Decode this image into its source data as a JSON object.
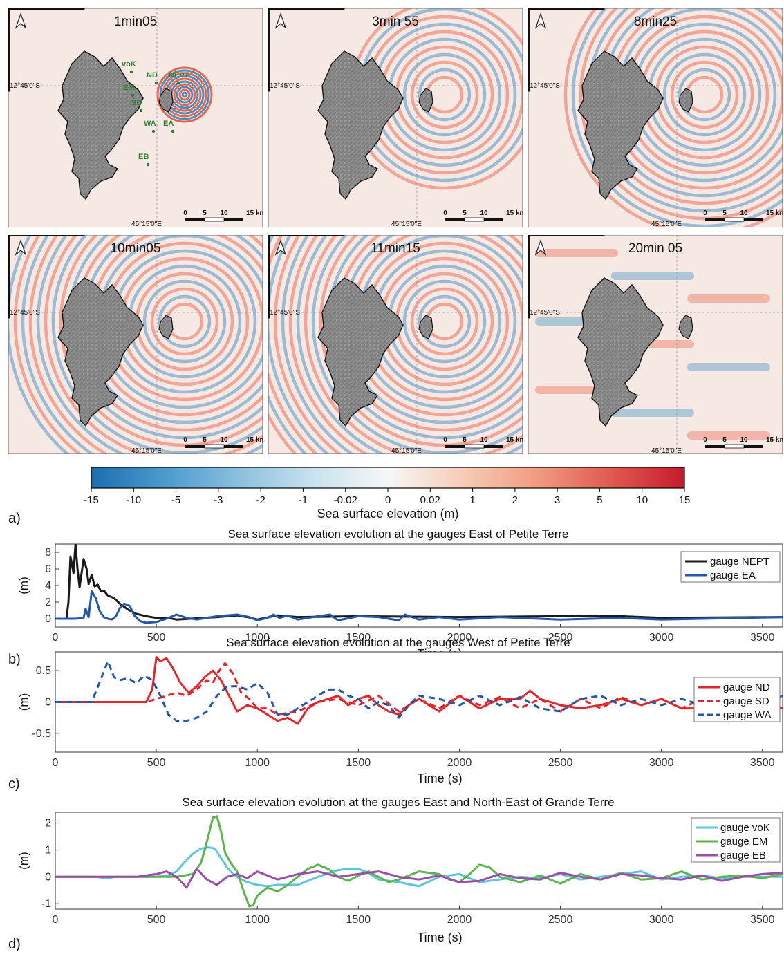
{
  "maps": {
    "panels": [
      {
        "time_label": "1min05"
      },
      {
        "time_label": "3min 55"
      },
      {
        "time_label": "8min25"
      },
      {
        "time_label": "10min05"
      },
      {
        "time_label": "11min15"
      },
      {
        "time_label": "20min 05"
      }
    ],
    "lat_label": "12°45'0\"S",
    "lon_label": "45°15'0\"E",
    "scale_labels": [
      "0",
      "5",
      "10",
      "15 km"
    ],
    "gauge_labels": [
      "voK",
      "ND",
      "NEPT",
      "EM",
      "SD",
      "WA",
      "EA",
      "EB"
    ],
    "colors": {
      "ocean": "#f6e8e2",
      "land": "#8a8a8a",
      "gauge": "#2e7d32",
      "positive": "#e8553f",
      "negative": "#2f86c0"
    }
  },
  "colorbar": {
    "ticks": [
      "-15",
      "-10",
      "-5",
      "-3",
      "-2",
      "-1",
      "-0.02",
      "0",
      "0.02",
      "1",
      "2",
      "3",
      "5",
      "10",
      "15"
    ],
    "label": "Sea surface elevation (m)",
    "colors": [
      "#1a6fb0",
      "#4b9bcd",
      "#8cc0de",
      "#c9e2ef",
      "#f7f7f7",
      "#f6cdb7",
      "#f29c82",
      "#e05a4f",
      "#c51b2f"
    ]
  },
  "panel_labels": [
    "a)",
    "b)",
    "c)",
    "d)"
  ],
  "chart_data": [
    {
      "type": "line",
      "title": "Sea surface elevation evolution at the gauges East of Petite Terre",
      "xlabel": "Time (s)",
      "ylabel": "(m)",
      "xlim": [
        0,
        3600
      ],
      "ylim": [
        -1,
        9
      ],
      "xticks": [
        0,
        500,
        1000,
        1500,
        2000,
        2500,
        3000,
        3500
      ],
      "yticks": [
        0,
        2,
        4,
        6,
        8
      ],
      "legend": "top-right",
      "grid": false,
      "series": [
        {
          "name": "gauge NEPT",
          "color": "#1a1a1a",
          "dash": "solid",
          "x": [
            0,
            55,
            65,
            75,
            90,
            100,
            110,
            120,
            140,
            155,
            165,
            180,
            195,
            210,
            225,
            240,
            260,
            290,
            320,
            360,
            400,
            450,
            500,
            560,
            600,
            700,
            800,
            900,
            950,
            1000,
            1100,
            1200,
            1500,
            2000,
            2500,
            2800,
            3000,
            3600
          ],
          "y": [
            0,
            0,
            2,
            7.5,
            5.5,
            9,
            6,
            3.8,
            7.2,
            6,
            4.2,
            5.3,
            3.9,
            4.1,
            3.3,
            3.4,
            2.8,
            2.5,
            1.8,
            1.1,
            0.6,
            0.3,
            0.1,
            0.1,
            -0.1,
            0.05,
            0.2,
            0.4,
            0.2,
            -0.1,
            0.4,
            0.2,
            0.3,
            0.2,
            0.3,
            0.3,
            0.1,
            0.2
          ]
        },
        {
          "name": "gauge EA",
          "color": "#2457a6",
          "dash": "solid",
          "x": [
            0,
            100,
            140,
            150,
            165,
            180,
            200,
            220,
            240,
            260,
            280,
            300,
            320,
            340,
            355,
            370,
            390,
            420,
            450,
            500,
            550,
            600,
            650,
            700,
            800,
            900,
            960,
            1000,
            1050,
            1080,
            1110,
            1150,
            1200,
            1300,
            1360,
            1400,
            1500,
            1600,
            1700,
            1730,
            1800,
            1900,
            2000,
            2200,
            2500,
            2800,
            3000,
            3200,
            3600
          ],
          "y": [
            0,
            0,
            0.1,
            1.2,
            0.2,
            3.3,
            2.5,
            0.9,
            0.2,
            0,
            -0.1,
            0.3,
            1.3,
            1.8,
            1.7,
            1.5,
            0.4,
            -0.3,
            -0.5,
            -0.4,
            0,
            0.5,
            0.1,
            -0.1,
            0.3,
            0.5,
            0.2,
            -0.2,
            0.1,
            0.5,
            0.1,
            0.4,
            -0.1,
            0.3,
            0.5,
            -0.2,
            0.3,
            0.2,
            -0.2,
            0.5,
            -0.1,
            0.2,
            -0.1,
            0.2,
            -0.1,
            0.1,
            -0.1,
            0,
            0.2
          ]
        }
      ]
    },
    {
      "type": "line",
      "title": "Sea surface elevation evolution at the gauges West of Petite Terre",
      "xlabel": "Time (s)",
      "ylabel": "(m)",
      "xlim": [
        0,
        3600
      ],
      "ylim": [
        -0.8,
        0.8
      ],
      "xticks": [
        0,
        500,
        1000,
        1500,
        2000,
        2500,
        3000,
        3500
      ],
      "yticks": [
        -0.5,
        0,
        0.5
      ],
      "yticklabels": [
        "-0.5",
        "0",
        "0.5"
      ],
      "legend": "top-right",
      "grid": false,
      "series": [
        {
          "name": "gauge ND",
          "color": "#e4262b",
          "dash": "solid",
          "x": [
            0,
            450,
            480,
            500,
            520,
            550,
            580,
            620,
            660,
            700,
            740,
            780,
            820,
            860,
            900,
            950,
            1000,
            1050,
            1100,
            1150,
            1200,
            1250,
            1300,
            1350,
            1400,
            1450,
            1500,
            1550,
            1600,
            1650,
            1700,
            1750,
            1800,
            1900,
            2000,
            2100,
            2200,
            2300,
            2350,
            2400,
            2500,
            2600,
            2700,
            2800,
            2900,
            3000,
            3100,
            3200,
            3300,
            3400,
            3500,
            3600
          ],
          "y": [
            0,
            0,
            0.2,
            0.72,
            0.65,
            0.7,
            0.55,
            0.3,
            0.15,
            0.25,
            0.4,
            0.5,
            0.35,
            0.1,
            -0.15,
            -0.05,
            -0.1,
            -0.2,
            -0.3,
            -0.25,
            -0.35,
            -0.1,
            0,
            0.05,
            0.1,
            -0.05,
            0.05,
            0.1,
            -0.05,
            -0.15,
            -0.2,
            -0.05,
            0.05,
            -0.15,
            0.1,
            -0.1,
            0.05,
            0.05,
            0.18,
            0.05,
            -0.05,
            -0.1,
            -0.05,
            0.05,
            -0.05,
            0.05,
            -0.1,
            -0.1,
            0.05,
            -0.1,
            -0.05,
            -0.1
          ]
        },
        {
          "name": "gauge SD",
          "color": "#e4262b",
          "dash": "dash",
          "x": [
            0,
            450,
            500,
            550,
            600,
            650,
            700,
            750,
            780,
            800,
            840,
            880,
            920,
            960,
            1000,
            1050,
            1100,
            1200,
            1300,
            1400,
            1500,
            1600,
            1700,
            1800,
            1900,
            2000,
            2100,
            2200,
            2300,
            2400,
            2500,
            2600,
            2700,
            2800,
            2900,
            3000,
            3100,
            3200,
            3300,
            3400,
            3500,
            3600
          ],
          "y": [
            0,
            0,
            0.05,
            0.1,
            0.15,
            0.1,
            0.2,
            0.35,
            0.3,
            0.45,
            0.62,
            0.45,
            0.15,
            0.05,
            -0.1,
            -0.1,
            -0.2,
            -0.15,
            0,
            0.05,
            -0.05,
            0.1,
            -0.15,
            0.05,
            -0.1,
            0.1,
            -0.05,
            0.08,
            -0.1,
            0.05,
            -0.15,
            0.05,
            -0.1,
            0.08,
            -0.05,
            0.05,
            -0.1,
            0.05,
            -0.05,
            0.05,
            0,
            0.1
          ]
        },
        {
          "name": "gauge WA",
          "color": "#2457a6",
          "dash": "dash",
          "x": [
            0,
            180,
            230,
            260,
            290,
            320,
            360,
            400,
            440,
            480,
            520,
            560,
            600,
            650,
            700,
            750,
            800,
            850,
            900,
            950,
            1000,
            1050,
            1100,
            1150,
            1200,
            1250,
            1300,
            1350,
            1400,
            1450,
            1500,
            1550,
            1600,
            1650,
            1700,
            1750,
            1800,
            1900,
            2000,
            2100,
            2200,
            2300,
            2400,
            2500,
            2600,
            2700,
            2800,
            2900,
            3000,
            3100,
            3200,
            3300,
            3400,
            3500,
            3600
          ],
          "y": [
            0,
            0,
            0.4,
            0.65,
            0.4,
            0.35,
            0.38,
            0.3,
            0.42,
            0.35,
            0.1,
            -0.2,
            -0.3,
            -0.3,
            -0.25,
            -0.15,
            0.1,
            0.25,
            0.25,
            0.2,
            0.3,
            0.15,
            -0.2,
            -0.2,
            -0.1,
            0,
            0.1,
            0.2,
            0.2,
            0.1,
            0.05,
            -0.1,
            0,
            -0.05,
            -0.25,
            -0.05,
            0.1,
            0.05,
            -0.05,
            0.1,
            -0.05,
            0.08,
            -0.1,
            -0.15,
            0.05,
            0.1,
            -0.05,
            0.05,
            -0.05,
            0.05,
            -0.05,
            0.05,
            -0.05,
            0.05,
            0.1
          ]
        }
      ]
    },
    {
      "type": "line",
      "title": "Sea surface elevation evolution at the gauges East and North-East of Grande Terre",
      "xlabel": "Time (s)",
      "ylabel": "(m)",
      "xlim": [
        0,
        3600
      ],
      "ylim": [
        -1.2,
        2.4
      ],
      "xticks": [
        0,
        500,
        1000,
        1500,
        2000,
        2500,
        3000,
        3500
      ],
      "yticks": [
        -1,
        0,
        1,
        2
      ],
      "legend": "top-right",
      "grid": false,
      "series": [
        {
          "name": "gauge voK",
          "color": "#5ec5de",
          "dash": "solid",
          "x": [
            0,
            200,
            250,
            300,
            500,
            560,
            600,
            640,
            680,
            720,
            760,
            790,
            820,
            850,
            880,
            910,
            950,
            1000,
            1050,
            1100,
            1200,
            1300,
            1400,
            1450,
            1500,
            1550,
            1600,
            1700,
            1800,
            1900,
            2000,
            2100,
            2200,
            2300,
            2400,
            2500,
            2600,
            2700,
            2800,
            2900,
            3000,
            3100,
            3200,
            3300,
            3400,
            3500,
            3600
          ],
          "y": [
            0,
            0,
            -0.05,
            0,
            0,
            0.05,
            0.2,
            0.55,
            0.85,
            1.05,
            1.1,
            1.05,
            0.7,
            0.35,
            0.1,
            -0.05,
            -0.2,
            -0.3,
            -0.35,
            -0.3,
            -0.3,
            0,
            0.25,
            0.3,
            0.3,
            0.15,
            -0.1,
            -0.2,
            -0.35,
            0,
            0.1,
            -0.2,
            -0.1,
            0,
            -0.05,
            0.1,
            -0.1,
            0,
            0.1,
            0.2,
            -0.1,
            0,
            0.05,
            -0.05,
            0,
            0,
            0
          ]
        },
        {
          "name": "gauge EM",
          "color": "#5cb54c",
          "dash": "solid",
          "x": [
            0,
            500,
            600,
            680,
            720,
            740,
            760,
            780,
            800,
            820,
            840,
            870,
            900,
            930,
            960,
            980,
            1000,
            1050,
            1100,
            1150,
            1200,
            1250,
            1300,
            1350,
            1400,
            1450,
            1500,
            1550,
            1600,
            1650,
            1700,
            1800,
            1900,
            1950,
            2000,
            2050,
            2100,
            2150,
            2200,
            2300,
            2400,
            2500,
            2600,
            2700,
            2800,
            2900,
            3000,
            3100,
            3200,
            3300,
            3400,
            3500,
            3600
          ],
          "y": [
            0,
            0,
            0,
            0.1,
            0.5,
            1.0,
            1.6,
            2.2,
            2.25,
            1.7,
            0.9,
            0.5,
            0.2,
            -0.5,
            -1.1,
            -1.05,
            -0.7,
            -0.4,
            -0.55,
            -0.3,
            0,
            0.3,
            0.45,
            0.3,
            0,
            -0.15,
            0.05,
            0.2,
            0,
            -0.2,
            -0.1,
            0.2,
            0.1,
            -0.1,
            -0.2,
            0.1,
            0.45,
            0.35,
            0,
            -0.2,
            0.05,
            -0.25,
            0.1,
            -0.1,
            0.15,
            -0.1,
            -0.05,
            0.2,
            -0.1,
            0,
            0.05,
            -0.05,
            0.1
          ]
        },
        {
          "name": "gauge EB",
          "color": "#9b4ea8",
          "dash": "solid",
          "x": [
            0,
            400,
            450,
            500,
            550,
            600,
            650,
            700,
            750,
            800,
            850,
            900,
            950,
            1000,
            1100,
            1200,
            1300,
            1400,
            1500,
            1600,
            1700,
            1800,
            1900,
            2000,
            2100,
            2200,
            2300,
            2400,
            2500,
            2600,
            2700,
            2800,
            2900,
            3000,
            3100,
            3200,
            3300,
            3400,
            3500,
            3600
          ],
          "y": [
            0,
            0,
            0.05,
            0.1,
            0.2,
            0,
            -0.4,
            0.3,
            -0.1,
            -0.3,
            0,
            0.1,
            -0.05,
            0.2,
            -0.1,
            0.1,
            0.2,
            0,
            0.1,
            0.2,
            0,
            -0.1,
            0.05,
            -0.2,
            -0.15,
            0.1,
            -0.05,
            -0.1,
            0.15,
            0,
            -0.1,
            0.1,
            0.05,
            -0.05,
            -0.1,
            0.05,
            -0.15,
            0,
            0.1,
            0.15
          ]
        }
      ]
    }
  ]
}
